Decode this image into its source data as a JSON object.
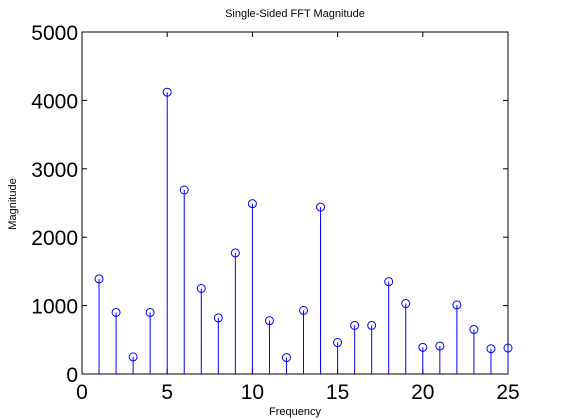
{
  "chart_data": {
    "type": "stem",
    "title": "Single-Sided FFT Magnitude",
    "xlabel": "Frequency",
    "ylabel": "Magnitude",
    "xlim": [
      0,
      25
    ],
    "ylim": [
      0,
      5000
    ],
    "xticks": [
      0,
      5,
      10,
      15,
      20,
      25
    ],
    "yticks": [
      0,
      1000,
      2000,
      3000,
      4000,
      5000
    ],
    "grid": false,
    "legend": "none",
    "color": "#0000ff",
    "marker": "circle",
    "x": [
      1,
      2,
      3,
      4,
      5,
      6,
      7,
      8,
      9,
      10,
      11,
      12,
      13,
      14,
      15,
      16,
      17,
      18,
      19,
      20,
      21,
      22,
      23,
      24,
      25
    ],
    "y": [
      1390,
      900,
      250,
      900,
      4120,
      2690,
      1250,
      820,
      1770,
      2490,
      780,
      240,
      930,
      2440,
      460,
      710,
      710,
      1350,
      1030,
      390,
      410,
      1010,
      650,
      370,
      380
    ]
  }
}
